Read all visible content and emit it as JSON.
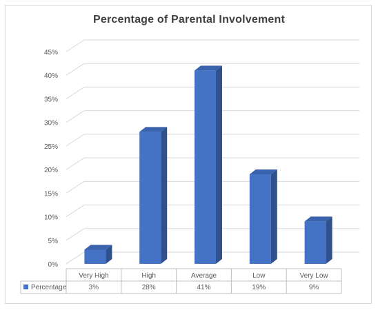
{
  "chart_data": {
    "type": "bar",
    "title": "Percentage of Parental Involvement",
    "categories": [
      "Very High",
      "High",
      "Average",
      "Low",
      "Very Low"
    ],
    "series": [
      {
        "name": "Percentage",
        "values": [
          3,
          28,
          41,
          19,
          9
        ],
        "value_labels": [
          "3%",
          "28%",
          "41%",
          "19%",
          "9%"
        ]
      }
    ],
    "ylim": [
      0,
      45
    ],
    "yticks": [
      "0%",
      "5%",
      "10%",
      "15%",
      "20%",
      "25%",
      "30%",
      "35%",
      "40%",
      "45%"
    ],
    "grid": true,
    "three_d": true,
    "data_table": true,
    "colors": {
      "bar_front": "#4472c4",
      "bar_side": "#2f528f",
      "bar_top": "#3a62ad",
      "grid": "#d9d9d9"
    }
  }
}
